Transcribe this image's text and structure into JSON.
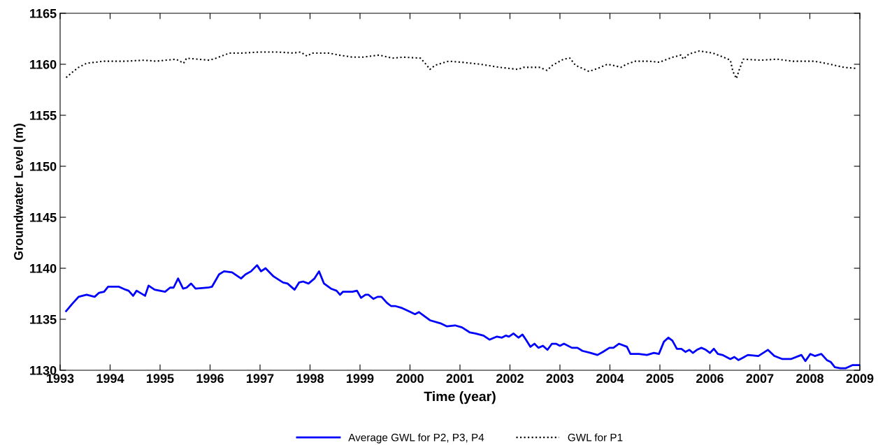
{
  "chart_data": {
    "type": "line",
    "xlabel": "Time (year)",
    "ylabel": "Groundwater Level (m)",
    "xlim": [
      1993,
      2009
    ],
    "xticks": [
      1993,
      1994,
      1995,
      1996,
      1997,
      1998,
      1999,
      2000,
      2001,
      2002,
      2003,
      2004,
      2005,
      2006,
      2007,
      2008,
      2009
    ],
    "ylim": [
      1130,
      1165
    ],
    "yticks": [
      1130,
      1135,
      1140,
      1145,
      1150,
      1155,
      1160,
      1165
    ],
    "grid": false,
    "legend": "bottom",
    "marker": "none",
    "series": [
      {
        "name": "Average GWL for P2, P3, P4",
        "color": "#0000ff",
        "line_style": "solid",
        "x": [
          1993.12,
          1993.24,
          1993.37,
          1993.53,
          1993.69,
          1993.78,
          1993.88,
          1993.96,
          1994.17,
          1994.31,
          1994.37,
          1994.46,
          1994.53,
          1994.7,
          1994.77,
          1994.89,
          1995.1,
          1995.2,
          1995.27,
          1995.36,
          1995.46,
          1995.53,
          1995.62,
          1995.71,
          1995.96,
          1996.04,
          1996.18,
          1996.28,
          1996.44,
          1996.62,
          1996.71,
          1996.82,
          1996.94,
          1997.02,
          1997.11,
          1997.27,
          1997.46,
          1997.55,
          1997.69,
          1997.78,
          1997.86,
          1997.97,
          1998.09,
          1998.18,
          1998.28,
          1998.42,
          1998.53,
          1998.6,
          1998.66,
          1998.85,
          1998.94,
          1999.02,
          1999.11,
          1999.17,
          1999.27,
          1999.35,
          1999.43,
          1999.54,
          1999.62,
          1999.7,
          1999.84,
          1999.97,
          2000.1,
          2000.18,
          2000.4,
          2000.61,
          2000.74,
          2000.9,
          2001.04,
          2001.2,
          2001.31,
          2001.47,
          2001.59,
          2001.74,
          2001.84,
          2001.92,
          2001.98,
          2002.07,
          2002.17,
          2002.25,
          2002.32,
          2002.41,
          2002.49,
          2002.57,
          2002.66,
          2002.75,
          2002.84,
          2002.92,
          2003.0,
          2003.08,
          2003.24,
          2003.35,
          2003.45,
          2003.61,
          2003.75,
          2003.86,
          2003.99,
          2004.07,
          2004.18,
          2004.34,
          2004.41,
          2004.58,
          2004.74,
          2004.88,
          2004.98,
          2005.08,
          2005.17,
          2005.25,
          2005.34,
          2005.43,
          2005.51,
          2005.59,
          2005.66,
          2005.74,
          2005.83,
          2005.92,
          2006.0,
          2006.08,
          2006.16,
          2006.25,
          2006.41,
          2006.49,
          2006.57,
          2006.65,
          2006.76,
          2006.97,
          2007.16,
          2007.29,
          2007.45,
          2007.62,
          2007.83,
          2007.91,
          2008.01,
          2008.1,
          2008.23,
          2008.34,
          2008.42,
          2008.5,
          2008.61,
          2008.72,
          2008.85,
          2008.98
        ],
        "values": [
          1135.8,
          1136.5,
          1137.2,
          1137.4,
          1137.2,
          1137.6,
          1137.7,
          1138.2,
          1138.2,
          1137.9,
          1137.8,
          1137.3,
          1137.8,
          1137.3,
          1138.3,
          1137.9,
          1137.7,
          1138.1,
          1138.1,
          1139.0,
          1138.0,
          1138.1,
          1138.5,
          1138.0,
          1138.1,
          1138.2,
          1139.4,
          1139.7,
          1139.6,
          1139.0,
          1139.4,
          1139.7,
          1140.3,
          1139.7,
          1140.0,
          1139.2,
          1138.6,
          1138.5,
          1137.9,
          1138.6,
          1138.7,
          1138.5,
          1139.0,
          1139.7,
          1138.5,
          1138.0,
          1137.8,
          1137.4,
          1137.7,
          1137.7,
          1137.8,
          1137.1,
          1137.4,
          1137.4,
          1137.0,
          1137.2,
          1137.2,
          1136.6,
          1136.3,
          1136.3,
          1136.1,
          1135.8,
          1135.5,
          1135.7,
          1134.9,
          1134.6,
          1134.3,
          1134.4,
          1134.2,
          1133.7,
          1133.6,
          1133.4,
          1133.0,
          1133.3,
          1133.2,
          1133.4,
          1133.3,
          1133.6,
          1133.2,
          1133.5,
          1133.0,
          1132.3,
          1132.6,
          1132.2,
          1132.4,
          1132.0,
          1132.6,
          1132.6,
          1132.4,
          1132.6,
          1132.2,
          1132.2,
          1131.9,
          1131.7,
          1131.5,
          1131.8,
          1132.2,
          1132.2,
          1132.6,
          1132.3,
          1131.6,
          1131.6,
          1131.5,
          1131.7,
          1131.6,
          1132.8,
          1133.2,
          1132.9,
          1132.1,
          1132.1,
          1131.8,
          1132.0,
          1131.7,
          1132.0,
          1132.2,
          1132.0,
          1131.7,
          1132.1,
          1131.6,
          1131.5,
          1131.1,
          1131.3,
          1131.0,
          1131.2,
          1131.5,
          1131.4,
          1132.0,
          1131.4,
          1131.1,
          1131.1,
          1131.5,
          1130.9,
          1131.6,
          1131.4,
          1131.6,
          1131.0,
          1130.8,
          1130.3,
          1130.2,
          1130.2,
          1130.5,
          1130.5
        ]
      },
      {
        "name": "GWL for P1",
        "color": "#000000",
        "line_style": "dotted",
        "x": [
          1993.12,
          1993.24,
          1993.37,
          1993.53,
          1993.88,
          1994.31,
          1994.68,
          1994.92,
          1995.32,
          1995.47,
          1995.53,
          1995.75,
          1995.99,
          1996.12,
          1996.39,
          1996.66,
          1996.98,
          1997.35,
          1997.67,
          1997.81,
          1997.94,
          1998.04,
          1998.37,
          1998.58,
          1998.85,
          1999.06,
          1999.38,
          1999.65,
          1999.86,
          2000.21,
          2000.32,
          2000.4,
          2000.5,
          2000.77,
          2001.04,
          2001.41,
          2001.79,
          2002.16,
          2002.27,
          2002.59,
          2002.74,
          2002.85,
          2003.07,
          2003.2,
          2003.31,
          2003.58,
          2003.76,
          2003.95,
          2004.06,
          2004.22,
          2004.33,
          2004.51,
          2004.78,
          2004.99,
          2005.26,
          2005.42,
          2005.47,
          2005.58,
          2005.79,
          2006.06,
          2006.27,
          2006.41,
          2006.46,
          2006.53,
          2006.59,
          2006.67,
          2007.02,
          2007.34,
          2007.66,
          2008.09,
          2008.41,
          2008.68,
          2008.92
        ],
        "values": [
          1158.7,
          1159.2,
          1159.7,
          1160.1,
          1160.3,
          1160.3,
          1160.4,
          1160.3,
          1160.5,
          1160.1,
          1160.6,
          1160.5,
          1160.4,
          1160.6,
          1161.1,
          1161.1,
          1161.2,
          1161.2,
          1161.1,
          1161.2,
          1160.8,
          1161.1,
          1161.1,
          1160.9,
          1160.7,
          1160.7,
          1160.9,
          1160.6,
          1160.7,
          1160.6,
          1160.0,
          1159.5,
          1159.9,
          1160.3,
          1160.2,
          1160.0,
          1159.7,
          1159.5,
          1159.7,
          1159.7,
          1159.4,
          1159.9,
          1160.5,
          1160.6,
          1159.9,
          1159.3,
          1159.6,
          1160.0,
          1159.9,
          1159.7,
          1160.0,
          1160.3,
          1160.3,
          1160.2,
          1160.7,
          1160.9,
          1160.5,
          1161.0,
          1161.3,
          1161.1,
          1160.7,
          1160.4,
          1159.3,
          1158.6,
          1159.5,
          1160.5,
          1160.4,
          1160.5,
          1160.3,
          1160.3,
          1160.0,
          1159.7,
          1159.6
        ]
      }
    ]
  }
}
